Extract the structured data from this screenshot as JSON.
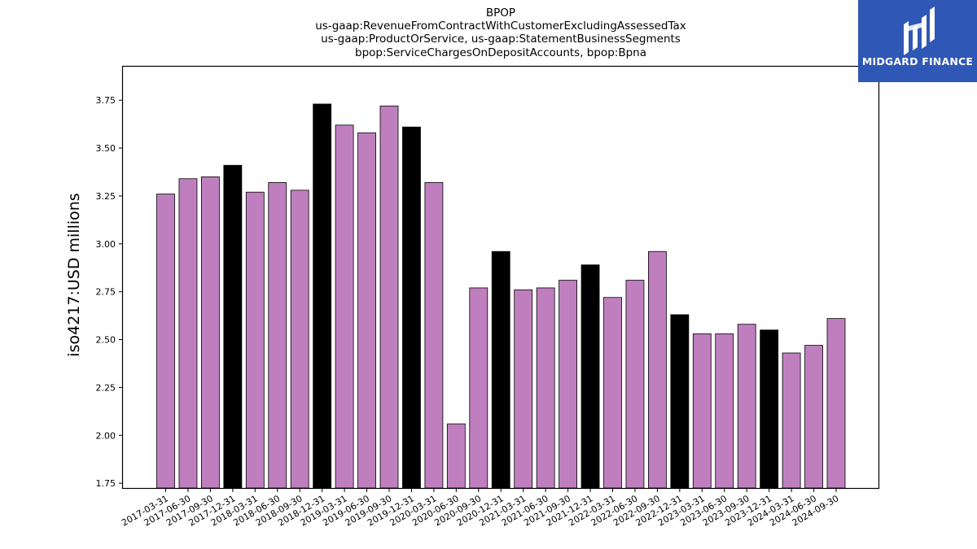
{
  "chart_data": {
    "type": "bar",
    "title_lines": [
      "BPOP",
      "us-gaap:RevenueFromContractWithCustomerExcludingAssessedTax",
      "us-gaap:ProductOrService, us-gaap:StatementBusinessSegments",
      "bpop:ServiceChargesOnDepositAccounts, bpop:Bpna"
    ],
    "ylabel": "iso4217:USD  millions",
    "ylim": [
      1.725,
      3.925
    ],
    "yticks": [
      "1.75",
      "2.00",
      "2.25",
      "2.50",
      "2.75",
      "3.00",
      "3.25",
      "3.50",
      "3.75"
    ],
    "grid": false,
    "colors": {
      "quarter": "#bf7fbf",
      "year_end": "#000000",
      "edge": "#000000"
    },
    "categories": [
      "2017-03-31",
      "2017-06-30",
      "2017-09-30",
      "2017-12-31",
      "2018-03-31",
      "2018-06-30",
      "2018-09-30",
      "2018-12-31",
      "2019-03-31",
      "2019-06-30",
      "2019-09-30",
      "2019-12-31",
      "2020-03-31",
      "2020-06-30",
      "2020-09-30",
      "2020-12-31",
      "2021-03-31",
      "2021-06-30",
      "2021-09-30",
      "2021-12-31",
      "2022-03-31",
      "2022-06-30",
      "2022-09-30",
      "2022-12-31",
      "2023-03-31",
      "2023-06-30",
      "2023-09-30",
      "2023-12-31",
      "2024-03-31",
      "2024-06-30",
      "2024-09-30"
    ],
    "values": [
      3.26,
      3.34,
      3.35,
      3.41,
      3.27,
      3.32,
      3.28,
      3.73,
      3.62,
      3.58,
      3.72,
      3.61,
      3.32,
      2.06,
      2.77,
      2.96,
      2.76,
      2.77,
      2.81,
      2.89,
      2.72,
      2.81,
      2.96,
      2.63,
      2.53,
      2.53,
      2.58,
      2.55,
      2.43,
      2.47,
      2.61
    ],
    "year_end_flags": [
      0,
      0,
      0,
      1,
      0,
      0,
      0,
      1,
      0,
      0,
      0,
      1,
      0,
      0,
      0,
      1,
      0,
      0,
      0,
      1,
      0,
      0,
      0,
      1,
      0,
      0,
      0,
      1,
      0,
      0,
      0
    ]
  },
  "logo": {
    "text": "MIDGARD FINANCE",
    "icon": "midgard-logo-icon"
  }
}
